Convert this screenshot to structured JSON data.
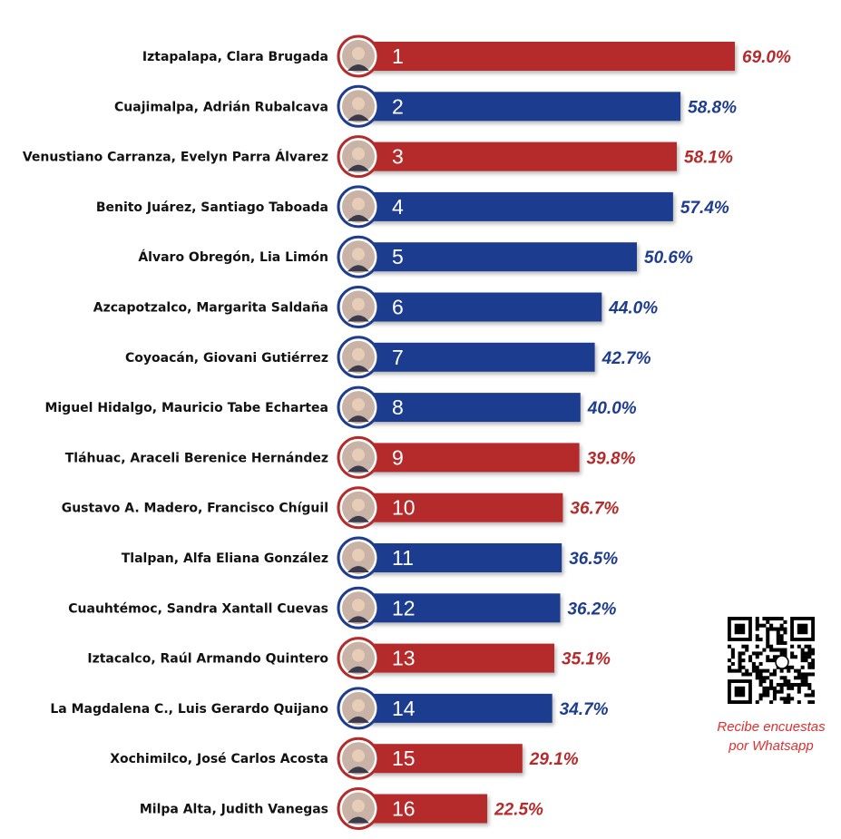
{
  "chart_data": {
    "type": "bar",
    "orientation": "horizontal",
    "categories": [
      "Iztapalapa, Clara Brugada",
      "Cuajimalpa, Adrián Rubalcava",
      "Venustiano Carranza, Evelyn Parra Álvarez",
      "Benito Juárez, Santiago Taboada",
      "Álvaro Obregón, Lia Limón",
      "Azcapotzalco, Margarita Saldaña",
      "Coyoacán, Giovani Gutiérrez",
      "Miguel Hidalgo, Mauricio Tabe Echartea",
      "Tláhuac, Araceli Berenice Hernández",
      "Gustavo A. Madero, Francisco Chíguil",
      "Tlalpan, Alfa Eliana González",
      "Cuauhtémoc, Sandra Xantall Cuevas",
      "Iztacalco, Raúl Armando Quintero",
      "La Magdalena C., Luis Gerardo Quijano",
      "Xochimilco, José Carlos Acosta",
      "Milpa Alta, Judith Vanegas"
    ],
    "ranks": [
      "1",
      "2",
      "3",
      "4",
      "5",
      "6",
      "7",
      "8",
      "9",
      "10",
      "11",
      "12",
      "13",
      "14",
      "15",
      "16"
    ],
    "values": [
      69.0,
      58.8,
      58.1,
      57.4,
      50.6,
      44.0,
      42.7,
      40.0,
      39.8,
      36.7,
      36.5,
      36.2,
      35.1,
      34.7,
      29.1,
      22.5
    ],
    "value_labels": [
      "69.0%",
      "58.8%",
      "58.1%",
      "57.4%",
      "50.6%",
      "44.0%",
      "42.7%",
      "40.0%",
      "39.8%",
      "36.7%",
      "36.5%",
      "36.2%",
      "35.1%",
      "34.7%",
      "29.1%",
      "22.5%"
    ],
    "bar_colors": [
      "#b52a2a",
      "#1e3d8f",
      "#b52a2a",
      "#1e3d8f",
      "#1e3d8f",
      "#1e3d8f",
      "#1e3d8f",
      "#1e3d8f",
      "#b52a2a",
      "#b52a2a",
      "#1e3d8f",
      "#1e3d8f",
      "#b52a2a",
      "#1e3d8f",
      "#b52a2a",
      "#b52a2a"
    ],
    "label_colors": [
      "#b52a2a",
      "#1e3d8f",
      "#b52a2a",
      "#1e3d8f",
      "#1e3d8f",
      "#1e3d8f",
      "#1e3d8f",
      "#1e3d8f",
      "#b52a2a",
      "#b52a2a",
      "#1e3d8f",
      "#1e3d8f",
      "#b52a2a",
      "#1e3d8f",
      "#b52a2a",
      "#b52a2a"
    ],
    "xlim": [
      0,
      69.0
    ]
  },
  "qr": {
    "caption_line1": "Recibe encuestas",
    "caption_line2": "por Whatsapp",
    "icon": "whatsapp-qr-code-icon"
  }
}
